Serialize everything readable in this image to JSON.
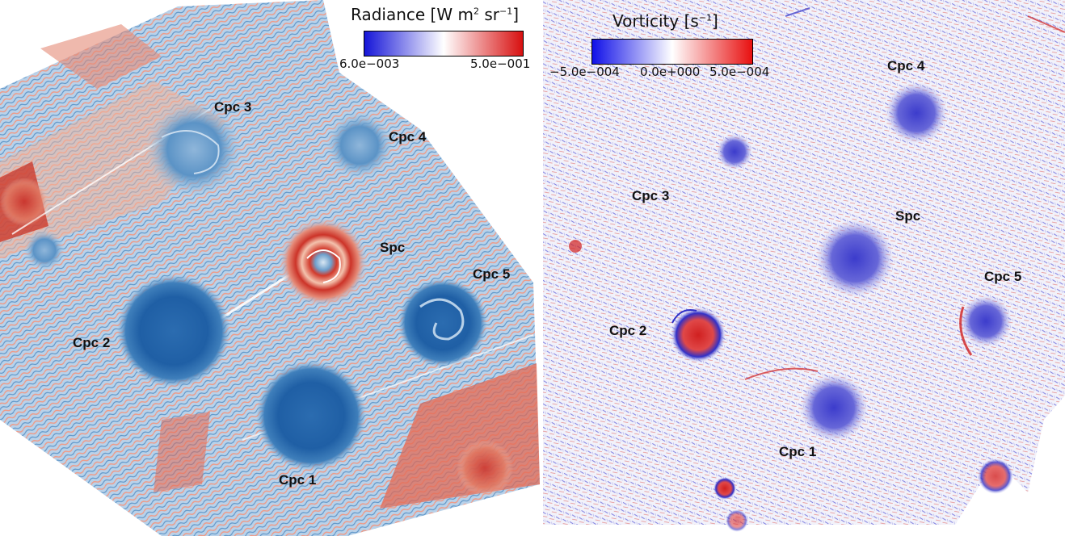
{
  "left": {
    "colorbar": {
      "title": "Radiance [W m",
      "title_sup1": "2",
      "title_mid": " sr",
      "title_sup2": "−1",
      "title_end": "]",
      "min_label": "6.0e−003",
      "max_label": "5.0e−001",
      "colors": [
        "#1515d8",
        "#ffffff",
        "#d81010"
      ]
    },
    "labels": {
      "cpc1": "Cpc 1",
      "cpc2": "Cpc 2",
      "cpc3": "Cpc 3",
      "cpc4": "Cpc 4",
      "cpc5": "Cpc 5",
      "spc": "Spc"
    }
  },
  "right": {
    "colorbar": {
      "title": "Vorticity [s",
      "title_sup": "−1",
      "title_end": "]",
      "ticks": [
        "−5.0e−004",
        "0.0e+000",
        "5.0e−004"
      ],
      "colors": [
        "#1010e8",
        "#ffffff",
        "#e81010"
      ]
    },
    "labels": {
      "cpc1": "Cpc 1",
      "cpc2": "Cpc 2",
      "cpc3": "Cpc 3",
      "cpc4": "Cpc 4",
      "cpc5": "Cpc 5",
      "spc": "Spc"
    }
  },
  "colors": {
    "radiance_blue_dark": "#1f5fa5",
    "radiance_blue": "#5b93c6",
    "radiance_blue_light": "#a9c9e4",
    "radiance_red": "#cc3a2c",
    "radiance_red_light": "#efb39b",
    "vorticity_blue": "#3c3ccc",
    "vorticity_red": "#d02020",
    "vorticity_background": "#f2f2fa"
  }
}
